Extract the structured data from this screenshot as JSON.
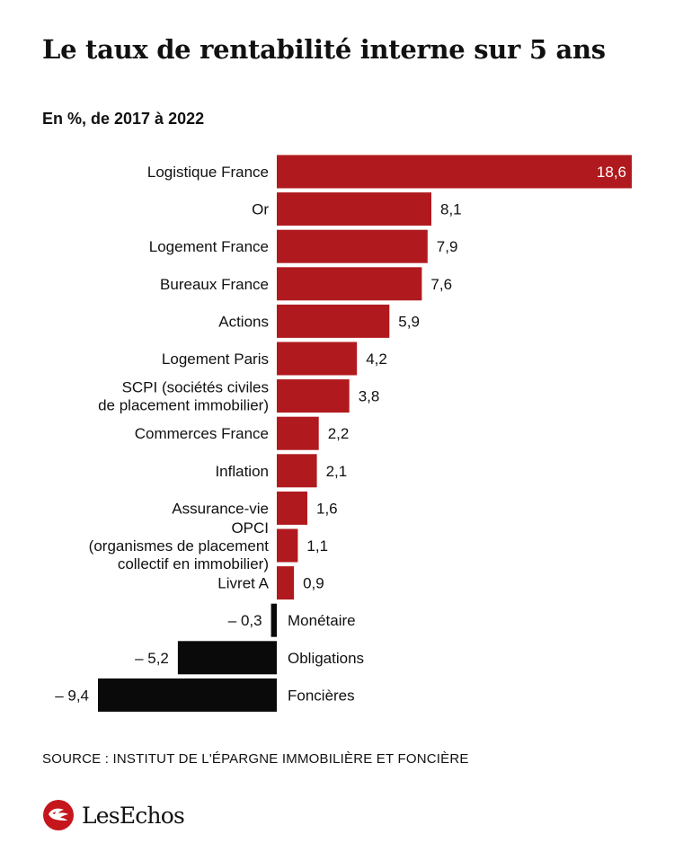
{
  "header": {
    "title": "Le taux de rentabilité interne sur 5 ans",
    "subtitle": "En %, de 2017 à 2022"
  },
  "chart_data": {
    "type": "bar",
    "orientation": "horizontal",
    "title": "Le taux de rentabilité interne sur 5 ans",
    "subtitle": "En %, de 2017 à 2022",
    "categories": [
      [
        "Logistique France"
      ],
      [
        "Or"
      ],
      [
        "Logement France"
      ],
      [
        "Bureaux France"
      ],
      [
        "Actions"
      ],
      [
        "Logement Paris"
      ],
      [
        "SCPI (sociétés civiles",
        "de placement immobilier)"
      ],
      [
        "Commerces France"
      ],
      [
        "Inflation"
      ],
      [
        "Assurance-vie"
      ],
      [
        "OPCI",
        "(organismes de placement",
        "collectif en immobilier)"
      ],
      [
        "Livret A"
      ],
      [
        "Monétaire"
      ],
      [
        "Obligations"
      ],
      [
        "Foncières"
      ]
    ],
    "values": [
      18.6,
      8.1,
      7.9,
      7.6,
      5.9,
      4.2,
      3.8,
      2.2,
      2.1,
      1.6,
      1.1,
      0.9,
      -0.3,
      -5.2,
      -9.4
    ],
    "value_labels": [
      "18,6",
      "8,1",
      "7,9",
      "7,6",
      "5,9",
      "4,2",
      "3,8",
      "2,2",
      "2,1",
      "1,6",
      "1,1",
      "0,9",
      "– 0,3",
      "– 5,2",
      "– 9,4"
    ],
    "colors": {
      "positive": "#b01a1e",
      "negative": "#0a0a0a"
    },
    "xlim": [
      -9.4,
      18.6
    ],
    "grid": false,
    "legend": "none"
  },
  "footer": {
    "source": "SOURCE : INSTITUT DE L'ÉPARGNE IMMOBILIÈRE ET FONCIÈRE",
    "brand_name": "LesEchos",
    "brand_icon": "les-echos-logo-icon"
  }
}
